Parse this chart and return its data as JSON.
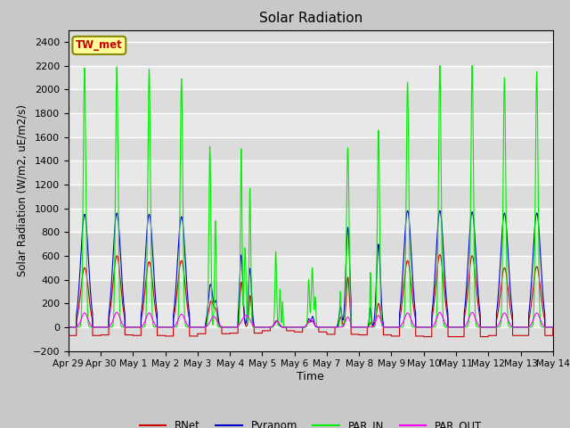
{
  "title": "Solar Radiation",
  "xlabel": "Time",
  "ylabel": "Solar Radiation (W/m2, uE/m2/s)",
  "ylim": [
    -200,
    2500
  ],
  "yticks": [
    -200,
    0,
    200,
    400,
    600,
    800,
    1000,
    1200,
    1400,
    1600,
    1800,
    2000,
    2200,
    2400
  ],
  "colors": {
    "RNet": "#cc0000",
    "Pyranom": "#0000cc",
    "PAR_IN": "#00ee00",
    "PAR_OUT": "#ff00ff"
  },
  "station_label": "TW_met",
  "station_label_color": "#cc0000",
  "station_box_color": "#ffff99",
  "station_box_edge": "#888800",
  "tick_labels": [
    "Apr 29",
    "Apr 30",
    "May 1",
    "May 2",
    "May 3",
    "May 4",
    "May 5",
    "May 6",
    "May 7",
    "May 8",
    "May 9",
    "May 10",
    "May 11",
    "May 12",
    "May 13",
    "May 14"
  ],
  "bg_light": "#dcdcdc",
  "bg_dark": "#c8c8c8",
  "grid_color": "#ffffff"
}
